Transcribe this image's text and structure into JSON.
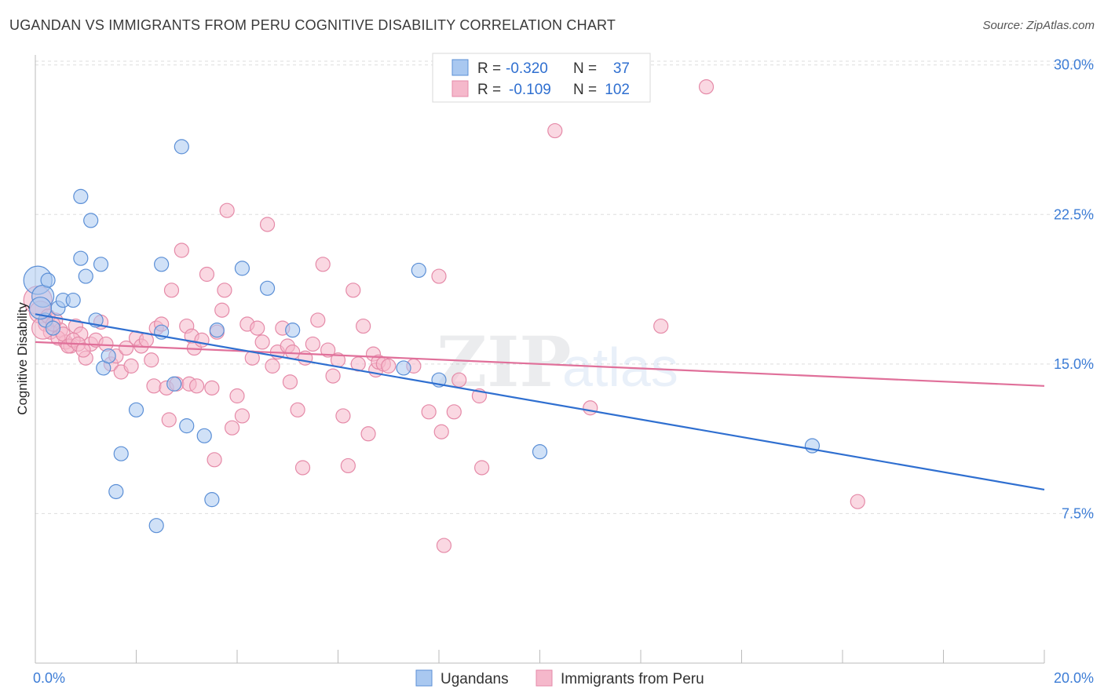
{
  "title": "UGANDAN VS IMMIGRANTS FROM PERU COGNITIVE DISABILITY CORRELATION CHART",
  "source": "Source: ZipAtlas.com",
  "watermark": {
    "zip": "ZIP",
    "atlas": "atlas"
  },
  "colors": {
    "blue_fill": "#a9c8f0",
    "blue_stroke": "#5b8fd6",
    "blue_line": "#2f6fd0",
    "pink_fill": "#f5b8cb",
    "pink_stroke": "#e58aa8",
    "pink_line": "#e0709a",
    "tick_label": "#3d7dd6",
    "grid": "#dddddd"
  },
  "legend": {
    "rows": [
      {
        "r_label": "R = ",
        "r_value": "-0.320",
        "n_label": "N = ",
        "n_value": "37"
      },
      {
        "r_label": "R = ",
        "r_value": "-0.109",
        "n_label": "N = ",
        "n_value": "102"
      }
    ]
  },
  "chart_data": {
    "type": "scatter",
    "title": "UGANDAN VS IMMIGRANTS FROM PERU COGNITIVE DISABILITY CORRELATION CHART",
    "xlabel": "",
    "ylabel": "Cognitive Disability",
    "xlim": [
      0,
      20
    ],
    "ylim": [
      0,
      30.5
    ],
    "x_tick_labels": [
      "0.0%",
      "20.0%"
    ],
    "y_ticks": [
      7.5,
      15.0,
      22.5,
      30.0
    ],
    "y_tick_labels": [
      "7.5%",
      "15.0%",
      "22.5%",
      "30.0%"
    ],
    "grid": true,
    "legend_position": "top-center",
    "series": [
      {
        "name": "Ugandans",
        "color": "#a9c8f0",
        "trend": {
          "x": [
            0,
            20
          ],
          "y": [
            17.5,
            8.7
          ]
        },
        "points": [
          [
            0.05,
            19.2
          ],
          [
            0.15,
            18.4
          ],
          [
            0.25,
            19.2
          ],
          [
            0.2,
            17.2
          ],
          [
            0.35,
            16.8
          ],
          [
            0.45,
            17.8
          ],
          [
            0.55,
            18.2
          ],
          [
            0.75,
            18.2
          ],
          [
            0.9,
            20.3
          ],
          [
            0.9,
            23.4
          ],
          [
            1.0,
            19.4
          ],
          [
            1.1,
            22.2
          ],
          [
            1.2,
            17.2
          ],
          [
            1.3,
            20.0
          ],
          [
            1.35,
            14.8
          ],
          [
            1.45,
            15.4
          ],
          [
            1.6,
            8.6
          ],
          [
            1.7,
            10.5
          ],
          [
            2.0,
            12.7
          ],
          [
            2.4,
            6.9
          ],
          [
            2.5,
            20.0
          ],
          [
            2.5,
            16.6
          ],
          [
            2.75,
            14.0
          ],
          [
            2.9,
            25.9
          ],
          [
            3.0,
            11.9
          ],
          [
            3.35,
            11.4
          ],
          [
            3.5,
            8.2
          ],
          [
            3.6,
            16.7
          ],
          [
            4.1,
            19.8
          ],
          [
            4.6,
            18.8
          ],
          [
            5.1,
            16.7
          ],
          [
            7.3,
            14.8
          ],
          [
            7.6,
            19.7
          ],
          [
            8.0,
            14.2
          ],
          [
            10.0,
            10.6
          ],
          [
            15.4,
            10.9
          ],
          [
            0.1,
            17.8
          ]
        ]
      },
      {
        "name": "Immigrants from Peru",
        "color": "#f5b8cb",
        "trend": {
          "x": [
            0,
            20
          ],
          "y": [
            16.1,
            13.9
          ]
        },
        "points": [
          [
            0.05,
            18.2
          ],
          [
            0.1,
            17.6
          ],
          [
            0.2,
            17.0
          ],
          [
            0.3,
            16.6
          ],
          [
            0.4,
            17.2
          ],
          [
            0.5,
            16.7
          ],
          [
            0.6,
            16.1
          ],
          [
            0.7,
            15.9
          ],
          [
            0.8,
            16.9
          ],
          [
            0.9,
            16.5
          ],
          [
            1.0,
            15.3
          ],
          [
            1.1,
            16.0
          ],
          [
            1.2,
            16.2
          ],
          [
            1.3,
            17.1
          ],
          [
            1.4,
            16.0
          ],
          [
            1.5,
            15.0
          ],
          [
            1.6,
            15.4
          ],
          [
            1.7,
            14.6
          ],
          [
            1.8,
            15.8
          ],
          [
            1.9,
            14.9
          ],
          [
            2.0,
            16.3
          ],
          [
            2.1,
            15.9
          ],
          [
            2.2,
            16.2
          ],
          [
            2.3,
            15.2
          ],
          [
            2.35,
            13.9
          ],
          [
            2.4,
            16.8
          ],
          [
            2.5,
            17.0
          ],
          [
            2.6,
            13.8
          ],
          [
            2.65,
            12.2
          ],
          [
            2.7,
            18.7
          ],
          [
            2.8,
            14.0
          ],
          [
            2.9,
            20.7
          ],
          [
            3.0,
            16.9
          ],
          [
            3.05,
            14.0
          ],
          [
            3.1,
            16.4
          ],
          [
            3.15,
            15.8
          ],
          [
            3.2,
            13.9
          ],
          [
            3.3,
            16.2
          ],
          [
            3.4,
            19.5
          ],
          [
            3.5,
            13.8
          ],
          [
            3.55,
            10.2
          ],
          [
            3.6,
            16.6
          ],
          [
            3.7,
            17.7
          ],
          [
            3.75,
            18.7
          ],
          [
            3.8,
            22.7
          ],
          [
            3.9,
            11.8
          ],
          [
            4.0,
            13.4
          ],
          [
            4.1,
            12.4
          ],
          [
            4.2,
            17.0
          ],
          [
            4.3,
            15.3
          ],
          [
            4.4,
            16.8
          ],
          [
            4.5,
            16.1
          ],
          [
            4.6,
            22.0
          ],
          [
            4.7,
            14.9
          ],
          [
            4.8,
            15.6
          ],
          [
            4.9,
            16.8
          ],
          [
            5.0,
            15.9
          ],
          [
            5.05,
            14.1
          ],
          [
            5.1,
            15.6
          ],
          [
            5.2,
            12.7
          ],
          [
            5.3,
            9.8
          ],
          [
            5.35,
            15.3
          ],
          [
            5.5,
            16.0
          ],
          [
            5.6,
            17.2
          ],
          [
            5.7,
            20.0
          ],
          [
            5.8,
            15.7
          ],
          [
            5.9,
            14.4
          ],
          [
            6.0,
            15.2
          ],
          [
            6.1,
            12.4
          ],
          [
            6.2,
            9.9
          ],
          [
            6.3,
            18.7
          ],
          [
            6.4,
            15.0
          ],
          [
            6.5,
            16.9
          ],
          [
            6.6,
            11.5
          ],
          [
            6.7,
            15.5
          ],
          [
            6.75,
            14.7
          ],
          [
            6.8,
            15.1
          ],
          [
            6.9,
            15.0
          ],
          [
            7.0,
            14.9
          ],
          [
            7.5,
            14.9
          ],
          [
            7.8,
            12.6
          ],
          [
            8.0,
            19.4
          ],
          [
            8.05,
            11.6
          ],
          [
            8.1,
            5.9
          ],
          [
            8.3,
            12.6
          ],
          [
            8.4,
            14.2
          ],
          [
            8.8,
            13.4
          ],
          [
            8.85,
            9.8
          ],
          [
            10.3,
            26.7
          ],
          [
            11.0,
            12.8
          ],
          [
            12.4,
            16.9
          ],
          [
            13.3,
            28.9
          ],
          [
            16.3,
            8.1
          ],
          [
            0.15,
            16.8
          ],
          [
            0.25,
            17.4
          ],
          [
            0.35,
            17.0
          ],
          [
            0.45,
            16.3
          ],
          [
            0.55,
            16.5
          ],
          [
            0.65,
            15.9
          ],
          [
            0.75,
            16.2
          ],
          [
            0.85,
            16.0
          ],
          [
            0.95,
            15.7
          ]
        ]
      }
    ]
  },
  "bottom_legend": {
    "items": [
      {
        "label": "Ugandans"
      },
      {
        "label": "Immigrants from Peru"
      }
    ]
  }
}
